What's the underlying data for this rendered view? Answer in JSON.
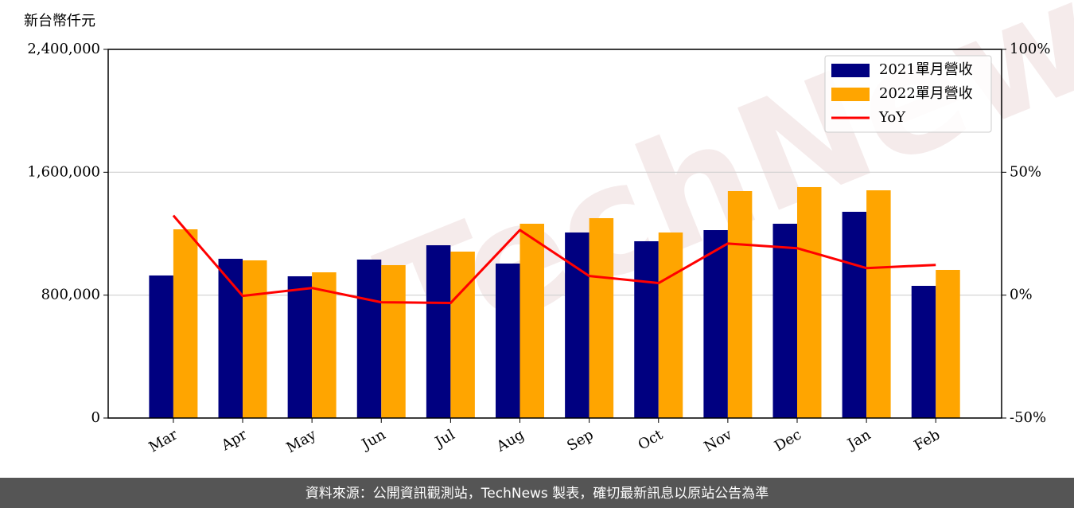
{
  "chart_data": {
    "type": "bar",
    "y_label": "新台幣仟元",
    "categories": [
      "Mar",
      "Apr",
      "May",
      "Jun",
      "Jul",
      "Aug",
      "Sep",
      "Oct",
      "Nov",
      "Dec",
      "Jan",
      "Feb"
    ],
    "series": [
      {
        "name": "2021單月營收",
        "color": "#000080",
        "type": "bar",
        "values": [
          928000,
          1036700,
          922700,
          1031500,
          1124800,
          1005600,
          1207800,
          1150800,
          1223300,
          1264800,
          1342600,
          860500
        ]
      },
      {
        "name": "2022單月營收",
        "color": "#ffa500",
        "type": "bar",
        "values": [
          1228500,
          1026400,
          948600,
          995300,
          1083400,
          1264800,
          1301100,
          1207800,
          1477300,
          1503300,
          1482500,
          964200
        ]
      },
      {
        "name": "YoY",
        "color": "#ff0000",
        "type": "line",
        "axis": "y2",
        "values": [
          32.4,
          -0.3,
          2.9,
          -2.9,
          -3.2,
          26.5,
          7.8,
          4.9,
          21.0,
          19.1,
          11.0,
          12.3
        ]
      }
    ],
    "ylim": [
      0,
      2400000
    ],
    "yticks": [
      0,
      {
        "value": 800000,
        "label": "800,000"
      },
      {
        "value": 1600000,
        "label": "1,600,000"
      },
      {
        "value": 2400000,
        "label": "2,400,000"
      }
    ],
    "y2lim": [
      -50,
      100
    ],
    "y2ticks": [
      {
        "value": -50,
        "label": "-50%"
      },
      {
        "value": 0,
        "label": "0%"
      },
      {
        "value": 50,
        "label": "50%"
      },
      {
        "value": 100,
        "label": "100%"
      }
    ],
    "grid": true,
    "legend": "upper right"
  },
  "watermark": "TechNews",
  "footer": "資料來源：公開資訊觀測站，TechNews 製表，確切最新訊息以原站公告為準"
}
